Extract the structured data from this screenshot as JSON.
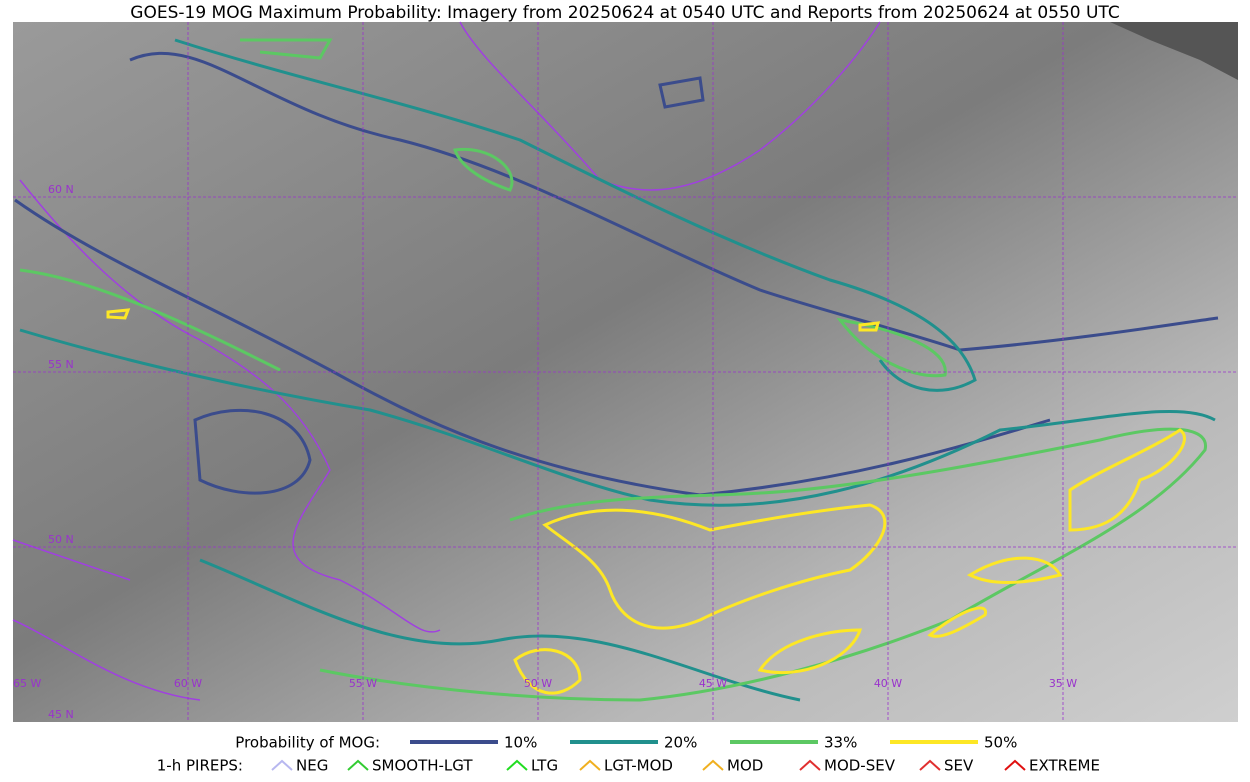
{
  "header": {
    "title": "GOES-19 MOG Maximum Probability: Imagery from 20250624 at 0540 UTC and Reports from 20250624 at 0550 UTC"
  },
  "map": {
    "lat_labels": [
      "60 N",
      "55 N",
      "50 N",
      "45 N"
    ],
    "lon_labels": [
      "65 W",
      "60 W",
      "55 W",
      "50 W",
      "45 W",
      "40 W",
      "35 W"
    ]
  },
  "legend": {
    "probability": {
      "label": "Probability of MOG:",
      "levels": [
        {
          "label": "10%",
          "color": "#3b4c8c"
        },
        {
          "label": "20%",
          "color": "#21908d"
        },
        {
          "label": "33%",
          "color": "#5cc863"
        },
        {
          "label": "50%",
          "color": "#fde725"
        }
      ]
    },
    "pireps": {
      "label": "1-h PIREPS:",
      "items": [
        {
          "label": "NEG",
          "color": "#b8b8f0"
        },
        {
          "label": "SMOOTH-LGT",
          "color": "#33cc33"
        },
        {
          "label": "LTG",
          "color": "#22dd22"
        },
        {
          "label": "LGT-MOD",
          "color": "#f0b020"
        },
        {
          "label": "MOD",
          "color": "#f0b020"
        },
        {
          "label": "MOD-SEV",
          "color": "#e03030"
        },
        {
          "label": "SEV",
          "color": "#e03030"
        },
        {
          "label": "EXTREME",
          "color": "#e01010"
        }
      ]
    }
  }
}
